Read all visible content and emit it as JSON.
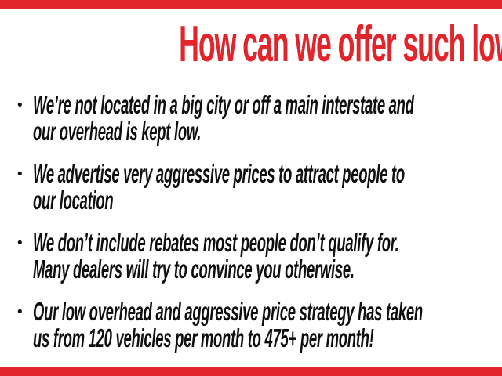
{
  "theme": {
    "accent_color": "#e2242b",
    "text_color": "#0f0f0f",
    "background_color": "#ffffff"
  },
  "header": {
    "title": "How can we offer such low prices?"
  },
  "bullet_marker": "•",
  "bullets": [
    {
      "text": "We’re not located in a big city or off a main interstate and\nour overhead is kept low."
    },
    {
      "text": "We advertise very aggressive prices to attract people to\nour location"
    },
    {
      "text": "We don’t include rebates most people don’t qualify for.\nMany dealers will try to convince you otherwise."
    },
    {
      "text": "Our low overhead and aggressive price strategy has taken\nus from 120 vehicles per month to 475+ per month!"
    }
  ]
}
